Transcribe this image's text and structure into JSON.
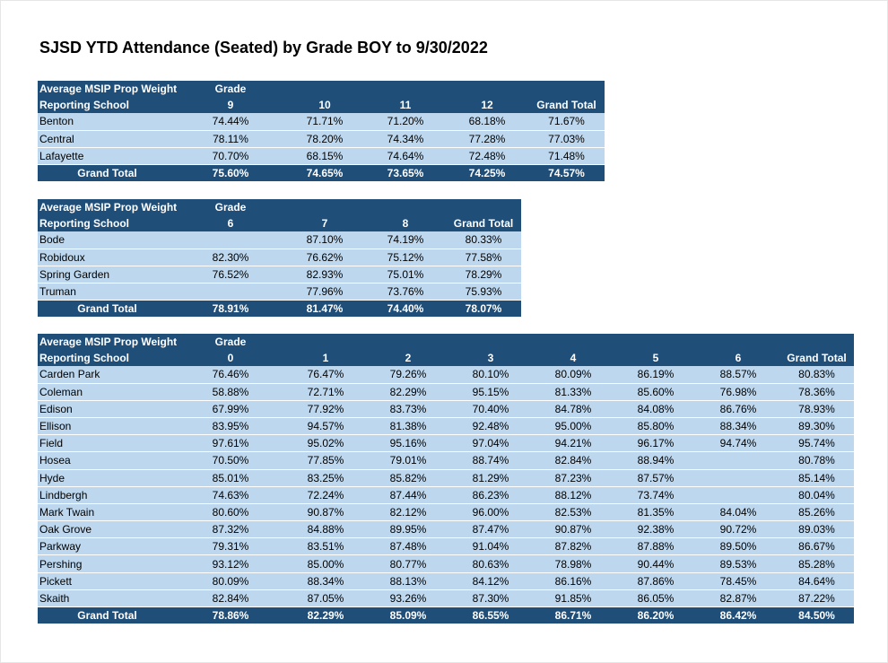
{
  "title": "SJSD YTD Attendance (Seated) by Grade BOY to 9/30/2022",
  "tables": [
    {
      "header1": "Average MSIP Prop Weight",
      "header_grade": "Grade",
      "header2": "Reporting School",
      "columns": [
        "9",
        "10",
        "11",
        "12",
        "Grand Total"
      ],
      "rows": [
        {
          "school": "Benton",
          "values": [
            "74.44%",
            "71.71%",
            "71.20%",
            "68.18%",
            "71.67%"
          ]
        },
        {
          "school": "Central",
          "values": [
            "78.11%",
            "78.20%",
            "74.34%",
            "77.28%",
            "77.03%"
          ]
        },
        {
          "school": "Lafayette",
          "values": [
            "70.70%",
            "68.15%",
            "74.64%",
            "72.48%",
            "71.48%"
          ]
        }
      ],
      "total": {
        "label": "Grand Total",
        "values": [
          "75.60%",
          "74.65%",
          "73.65%",
          "74.25%",
          "74.57%"
        ]
      }
    },
    {
      "header1": "Average MSIP Prop Weight",
      "header_grade": "Grade",
      "header2": "Reporting School",
      "columns": [
        "6",
        "7",
        "8",
        "Grand Total"
      ],
      "rows": [
        {
          "school": "Bode",
          "values": [
            "",
            "87.10%",
            "74.19%",
            "80.33%"
          ]
        },
        {
          "school": "Robidoux",
          "values": [
            "82.30%",
            "76.62%",
            "75.12%",
            "77.58%"
          ]
        },
        {
          "school": "Spring Garden",
          "values": [
            "76.52%",
            "82.93%",
            "75.01%",
            "78.29%"
          ]
        },
        {
          "school": "Truman",
          "values": [
            "",
            "77.96%",
            "73.76%",
            "75.93%"
          ]
        }
      ],
      "total": {
        "label": "Grand Total",
        "values": [
          "78.91%",
          "81.47%",
          "74.40%",
          "78.07%"
        ]
      }
    },
    {
      "header1": "Average MSIP Prop Weight",
      "header_grade": "Grade",
      "header2": "Reporting School",
      "columns": [
        "0",
        "1",
        "2",
        "3",
        "4",
        "5",
        "6",
        "Grand Total"
      ],
      "rows": [
        {
          "school": "Carden Park",
          "values": [
            "76.46%",
            "76.47%",
            "79.26%",
            "80.10%",
            "80.09%",
            "86.19%",
            "88.57%",
            "80.83%"
          ]
        },
        {
          "school": "Coleman",
          "values": [
            "58.88%",
            "72.71%",
            "82.29%",
            "95.15%",
            "81.33%",
            "85.60%",
            "76.98%",
            "78.36%"
          ]
        },
        {
          "school": "Edison",
          "values": [
            "67.99%",
            "77.92%",
            "83.73%",
            "70.40%",
            "84.78%",
            "84.08%",
            "86.76%",
            "78.93%"
          ]
        },
        {
          "school": "Ellison",
          "values": [
            "83.95%",
            "94.57%",
            "81.38%",
            "92.48%",
            "95.00%",
            "85.80%",
            "88.34%",
            "89.30%"
          ]
        },
        {
          "school": "Field",
          "values": [
            "97.61%",
            "95.02%",
            "95.16%",
            "97.04%",
            "94.21%",
            "96.17%",
            "94.74%",
            "95.74%"
          ]
        },
        {
          "school": "Hosea",
          "values": [
            "70.50%",
            "77.85%",
            "79.01%",
            "88.74%",
            "82.84%",
            "88.94%",
            "",
            "80.78%"
          ]
        },
        {
          "school": "Hyde",
          "values": [
            "85.01%",
            "83.25%",
            "85.82%",
            "81.29%",
            "87.23%",
            "87.57%",
            "",
            "85.14%"
          ]
        },
        {
          "school": "Lindbergh",
          "values": [
            "74.63%",
            "72.24%",
            "87.44%",
            "86.23%",
            "88.12%",
            "73.74%",
            "",
            "80.04%"
          ]
        },
        {
          "school": "Mark Twain",
          "values": [
            "80.60%",
            "90.87%",
            "82.12%",
            "96.00%",
            "82.53%",
            "81.35%",
            "84.04%",
            "85.26%"
          ]
        },
        {
          "school": "Oak Grove",
          "values": [
            "87.32%",
            "84.88%",
            "89.95%",
            "87.47%",
            "90.87%",
            "92.38%",
            "90.72%",
            "89.03%"
          ]
        },
        {
          "school": "Parkway",
          "values": [
            "79.31%",
            "83.51%",
            "87.48%",
            "91.04%",
            "87.82%",
            "87.88%",
            "89.50%",
            "86.67%"
          ]
        },
        {
          "school": "Pershing",
          "values": [
            "93.12%",
            "85.00%",
            "80.77%",
            "80.63%",
            "78.98%",
            "90.44%",
            "89.53%",
            "85.28%"
          ]
        },
        {
          "school": "Pickett",
          "values": [
            "80.09%",
            "88.34%",
            "88.13%",
            "84.12%",
            "86.16%",
            "87.86%",
            "78.45%",
            "84.64%"
          ]
        },
        {
          "school": "Skaith",
          "values": [
            "82.84%",
            "87.05%",
            "93.26%",
            "87.30%",
            "91.85%",
            "86.05%",
            "82.87%",
            "87.22%"
          ]
        }
      ],
      "total": {
        "label": "Grand Total",
        "values": [
          "78.86%",
          "82.29%",
          "85.09%",
          "86.55%",
          "86.71%",
          "86.20%",
          "86.42%",
          "84.50%"
        ]
      }
    }
  ]
}
